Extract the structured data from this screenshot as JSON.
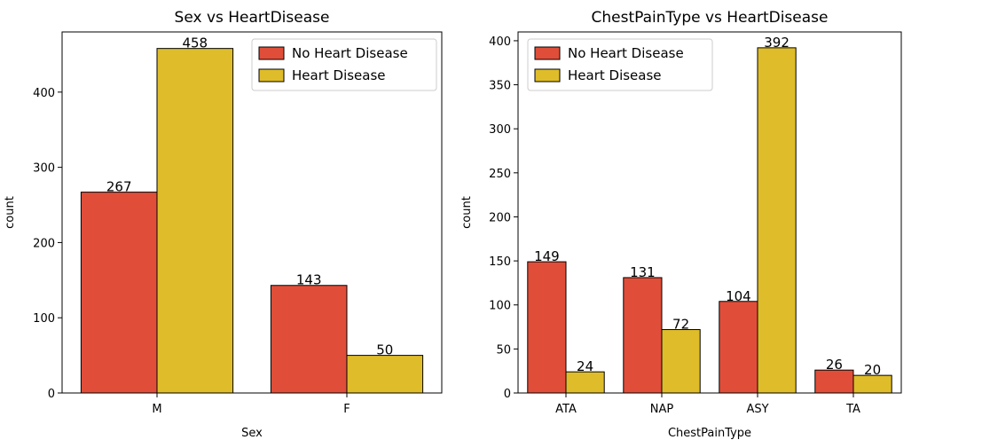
{
  "colors": {
    "no_heart_disease": "#e04e39",
    "heart_disease": "#dfbd2a",
    "edge": "#000000"
  },
  "legend": {
    "no": "No Heart Disease",
    "yes": "Heart Disease",
    "placement": "top-right"
  },
  "chart_data": [
    {
      "type": "bar",
      "title": "Sex vs HeartDisease",
      "xlabel": "Sex",
      "ylabel": "count",
      "categories": [
        "M",
        "F"
      ],
      "ylim": [
        0,
        480
      ],
      "yticks": [
        0,
        100,
        200,
        300,
        400
      ],
      "legend_placement": "top-right",
      "series": [
        {
          "name": "No Heart Disease",
          "values": [
            267,
            143
          ]
        },
        {
          "name": "Heart Disease",
          "values": [
            458,
            50
          ]
        }
      ]
    },
    {
      "type": "bar",
      "title": "ChestPainType vs HeartDisease",
      "xlabel": "ChestPainType",
      "ylabel": "count",
      "categories": [
        "ATA",
        "NAP",
        "ASY",
        "TA"
      ],
      "ylim": [
        0,
        410
      ],
      "yticks": [
        0,
        50,
        100,
        150,
        200,
        250,
        300,
        350,
        400
      ],
      "legend_placement": "top-left",
      "series": [
        {
          "name": "No Heart Disease",
          "values": [
            149,
            131,
            104,
            26
          ]
        },
        {
          "name": "Heart Disease",
          "values": [
            24,
            72,
            392,
            20
          ]
        }
      ]
    }
  ]
}
